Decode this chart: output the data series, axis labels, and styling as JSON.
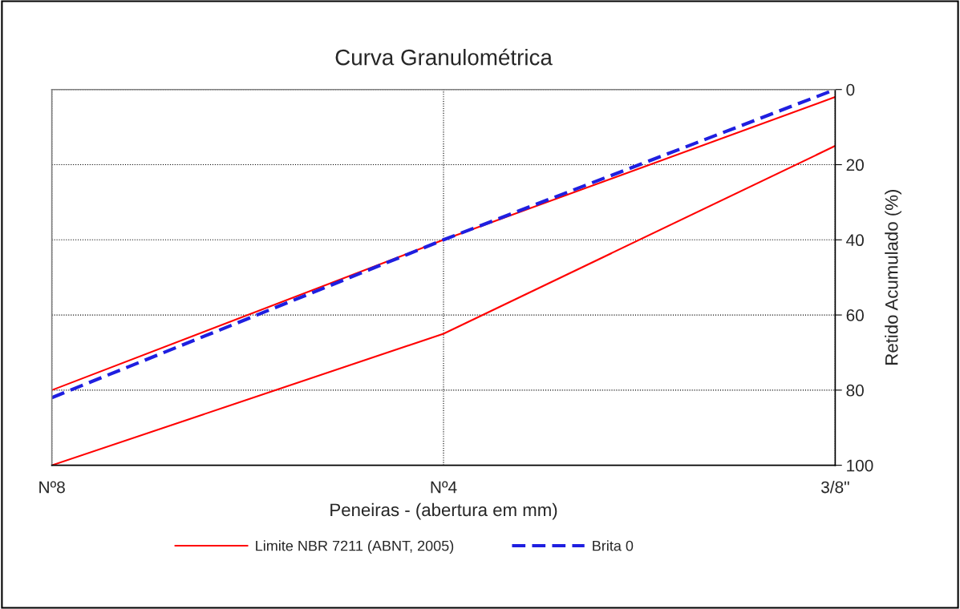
{
  "chart_data": {
    "type": "line",
    "title": "Curva Granulométrica",
    "xlabel": "Peneiras - (abertura em mm)",
    "ylabel": "Retido Acumulado (%)",
    "categories": [
      "Nº8",
      "Nº4",
      "3/8\""
    ],
    "series": [
      {
        "name": "Limite NBR 7211 (ABNT, 2005)",
        "color": "#ff0000",
        "values": [
          80,
          40,
          2
        ],
        "line_style": "solid"
      },
      {
        "color": "#ff0000",
        "values": [
          100,
          65,
          15
        ],
        "line_style": "solid"
      },
      {
        "name": "Brita 0",
        "color": "#1f1fe0",
        "values": [
          82,
          40,
          0
        ],
        "line_style": "dashed"
      }
    ],
    "ylim": [
      100,
      0
    ],
    "yticks": [
      0,
      20,
      40,
      60,
      80,
      100
    ],
    "grid": true,
    "legend": "bottom",
    "marker": "none"
  }
}
